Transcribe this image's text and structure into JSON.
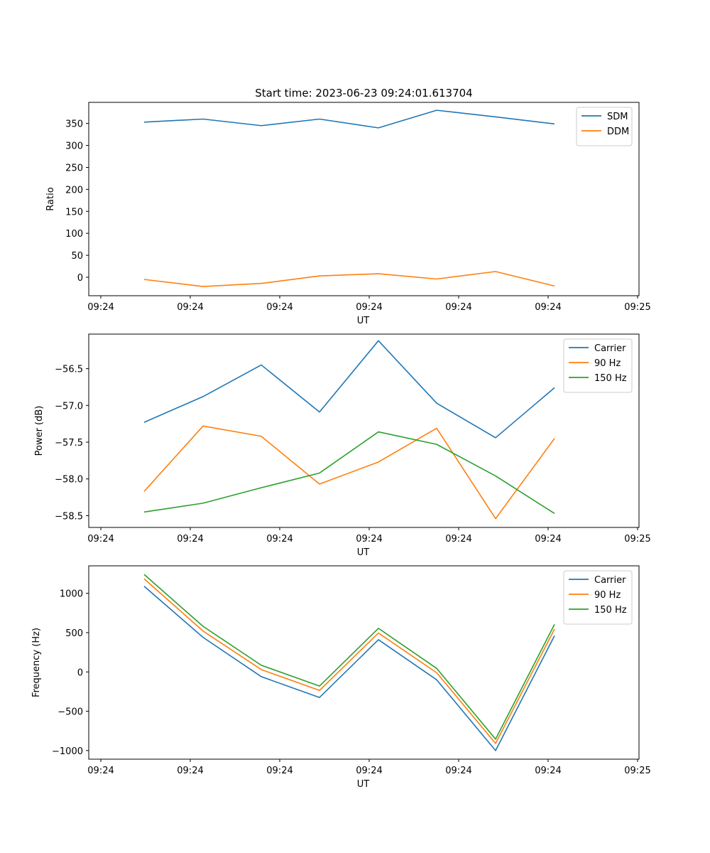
{
  "colors": {
    "blue": "#1f77b4",
    "orange": "#ff7f0e",
    "green": "#2ca02c"
  },
  "chart_data": [
    {
      "type": "line",
      "title": "Start time: 2023-06-23 09:24:01.613704",
      "xlabel": "UT",
      "ylabel": "Ratio",
      "xticks": [
        "09:24",
        "09:24",
        "09:24",
        "09:24",
        "09:24",
        "09:24",
        "09:24",
        "09:25"
      ],
      "yticks": [
        "0",
        "50",
        "100",
        "150",
        "200",
        "250",
        "300",
        "350"
      ],
      "ylim": [
        -42,
        398
      ],
      "legend": "top-right",
      "grid": false,
      "x": [
        1,
        2,
        3,
        4,
        5,
        6,
        7,
        8
      ],
      "series": [
        {
          "name": "SDM",
          "color": "#1f77b4",
          "values": [
            353,
            360,
            345,
            360,
            340,
            380,
            365,
            349
          ]
        },
        {
          "name": "DDM",
          "color": "#ff7f0e",
          "values": [
            -5,
            -21,
            -14,
            3,
            8,
            -4,
            13,
            -20
          ]
        }
      ]
    },
    {
      "type": "line",
      "title": "",
      "xlabel": "UT",
      "ylabel": "Power (dB)",
      "xticks": [
        "09:24",
        "09:24",
        "09:24",
        "09:24",
        "09:24",
        "09:24",
        "09:24",
        "09:25"
      ],
      "yticks": [
        "−58.5",
        "−58.0",
        "−57.5",
        "−57.0",
        "−56.5"
      ],
      "ylim": [
        -58.66,
        -56.03
      ],
      "legend": "top-right",
      "grid": false,
      "x": [
        1,
        2,
        3,
        4,
        5,
        6,
        7,
        8
      ],
      "series": [
        {
          "name": "Carrier",
          "color": "#1f77b4",
          "values": [
            -57.23,
            -56.88,
            -56.45,
            -57.09,
            -56.12,
            -56.97,
            -57.44,
            -56.76
          ]
        },
        {
          "name": "90 Hz",
          "color": "#ff7f0e",
          "values": [
            -58.17,
            -57.28,
            -57.42,
            -58.07,
            -57.77,
            -57.31,
            -58.54,
            -57.45
          ]
        },
        {
          "name": "150 Hz",
          "color": "#2ca02c",
          "values": [
            -58.45,
            -58.33,
            -58.12,
            -57.92,
            -57.36,
            -57.53,
            -57.96,
            -58.47
          ]
        }
      ]
    },
    {
      "type": "line",
      "title": "",
      "xlabel": "UT",
      "ylabel": "Frequency (Hz)",
      "xticks": [
        "09:24",
        "09:24",
        "09:24",
        "09:24",
        "09:24",
        "09:24",
        "09:24",
        "09:25"
      ],
      "yticks": [
        "−1000",
        "−500",
        "0",
        "500",
        "1000"
      ],
      "ylim": [
        -1110,
        1350
      ],
      "legend": "top-right",
      "grid": false,
      "x": [
        1,
        2,
        3,
        4,
        5,
        6,
        7,
        8
      ],
      "series": [
        {
          "name": "Carrier",
          "color": "#1f77b4",
          "values": [
            1090,
            440,
            -60,
            -325,
            410,
            -100,
            -1000,
            460
          ]
        },
        {
          "name": "90 Hz",
          "color": "#ff7f0e",
          "values": [
            1185,
            520,
            30,
            -235,
            495,
            -10,
            -910,
            545
          ]
        },
        {
          "name": "150 Hz",
          "color": "#2ca02c",
          "values": [
            1240,
            580,
            85,
            -180,
            555,
            45,
            -855,
            605
          ]
        }
      ]
    }
  ]
}
